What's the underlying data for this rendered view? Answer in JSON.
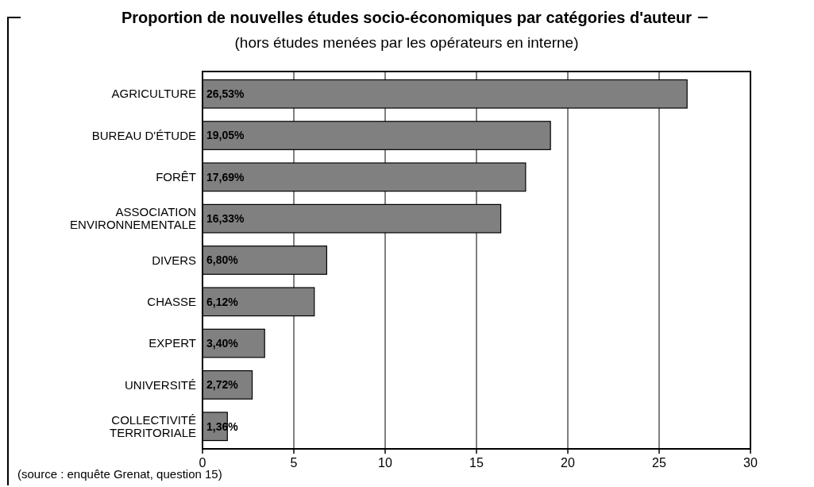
{
  "chart_data": {
    "type": "bar",
    "orientation": "horizontal",
    "title": "Proportion de nouvelles études socio-économiques par catégories d'auteur",
    "subtitle": "(hors études menées par les opérateurs en interne)",
    "categories": [
      "AGRICULTURE",
      "BUREAU D'ÉTUDE",
      "FORÊT",
      "ASSOCIATION ENVIRONNEMENTALE",
      "DIVERS",
      "CHASSE",
      "EXPERT",
      "UNIVERSITÉ",
      "COLLECTIVITÉ TERRITORIALE"
    ],
    "values": [
      26.53,
      19.05,
      17.69,
      16.33,
      6.8,
      6.12,
      3.4,
      2.72,
      1.36
    ],
    "value_labels": [
      "26,53%",
      "19,05%",
      "17,69%",
      "16,33%",
      "6,80%",
      "6,12%",
      "3,40%",
      "2,72%",
      "1,36%"
    ],
    "color": "#808080",
    "xlim": [
      0,
      30
    ],
    "xticks": [
      0,
      5,
      10,
      15,
      20,
      25,
      30
    ],
    "grid": "x",
    "annotations": [
      "(source : enquête Grenat, question 15)"
    ]
  }
}
